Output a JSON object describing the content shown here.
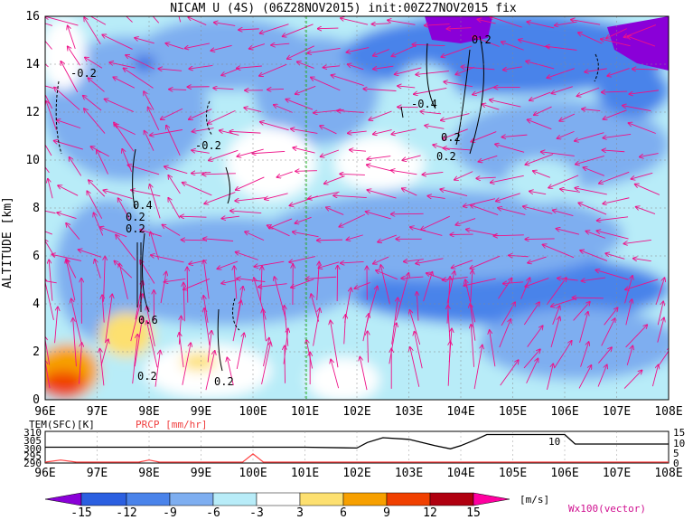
{
  "title": "NICAM U (4S) (06Z28NOV2015) init:00Z27NOV2015 fix",
  "main": {
    "ylabel": "ALTITUDE [km]",
    "yticks": [
      "0",
      "2",
      "4",
      "6",
      "8",
      "10",
      "12",
      "14",
      "16"
    ],
    "xticks": [
      "96E",
      "97E",
      "98E",
      "99E",
      "100E",
      "101E",
      "102E",
      "103E",
      "104E",
      "105E",
      "106E",
      "107E",
      "108E"
    ],
    "contour_labels": [
      "-0.2",
      "-0.2",
      "-0.4",
      "0.2",
      "0.2",
      "0.4",
      "0.2",
      "0.2",
      "0.6",
      "0.2",
      "0.2",
      "0.2"
    ],
    "marker_line_color": "#20b020"
  },
  "bottom": {
    "tem_label": "TEM(SFC)[K]",
    "prcp_label": "PRCP [mm/hr]",
    "left_ticks": [
      "310",
      "305",
      "300",
      "295",
      "290"
    ],
    "right_ticks": [
      "15",
      "10",
      "5",
      "0"
    ],
    "annotation": "10"
  },
  "colorbar": {
    "labels": [
      "-15",
      "-12",
      "-9",
      "-6",
      "-3",
      "3",
      "6",
      "9",
      "12",
      "15"
    ],
    "unit": "[m/s]",
    "colors": [
      "#8a00d8",
      "#2b5fe0",
      "#4a83ea",
      "#7eaef0",
      "#b8ecf8",
      "#ffffff",
      "#fde070",
      "#f7a000",
      "#f04000",
      "#b00010",
      "#ff00a0"
    ],
    "vector_note": "Wx100(vector)"
  },
  "chart_data": [
    {
      "type": "heatmap",
      "title": "NICAM U (4S) (06Z28NOV2015) init:00Z27NOV2015 fix",
      "xlabel": "",
      "ylabel": "ALTITUDE [km]",
      "xlim": [
        96,
        108
      ],
      "ylim": [
        0,
        16
      ],
      "variable": "U",
      "unit": "m/s",
      "levels": [
        -15,
        -12,
        -9,
        -6,
        -3,
        3,
        6,
        9,
        12,
        15
      ],
      "features": [
        {
          "x": 96.3,
          "y": 1.0,
          "value": 9
        },
        {
          "x": 97.8,
          "y": 2.0,
          "value": 6
        },
        {
          "x": 103.8,
          "y": 15.5,
          "value": -15
        },
        {
          "x": 107.5,
          "y": 15.0,
          "value": -15
        },
        {
          "x": 105.0,
          "y": 4.5,
          "value": -9
        },
        {
          "x": 99.0,
          "y": 14.2,
          "value": -9
        }
      ],
      "vertical_marker_x": 101,
      "grid": true
    },
    {
      "type": "line",
      "xlim": [
        96,
        108
      ],
      "series": [
        {
          "name": "TEM(SFC)[K]",
          "x": [
            96,
            97,
            98,
            99,
            100,
            101,
            102,
            102.2,
            102.5,
            103,
            103.5,
            103.8,
            104,
            104.3,
            104.5,
            106,
            106.2,
            106.5,
            107,
            108
          ],
          "values": [
            300,
            300,
            300,
            300,
            300,
            300,
            299.5,
            303,
            306,
            305,
            301,
            299,
            301,
            305,
            308,
            308,
            302,
            302,
            302,
            302
          ],
          "ylim": [
            290,
            310
          ]
        },
        {
          "name": "PRCP [mm/hr]",
          "x": [
            96,
            96.3,
            96.6,
            97,
            97.8,
            98,
            98.2,
            99,
            99.8,
            100,
            100.2,
            101,
            108
          ],
          "values": [
            0,
            1,
            0,
            0,
            0,
            1,
            0,
            0,
            0,
            4,
            0,
            0,
            0
          ],
          "ylim": [
            0,
            15
          ]
        }
      ]
    }
  ]
}
